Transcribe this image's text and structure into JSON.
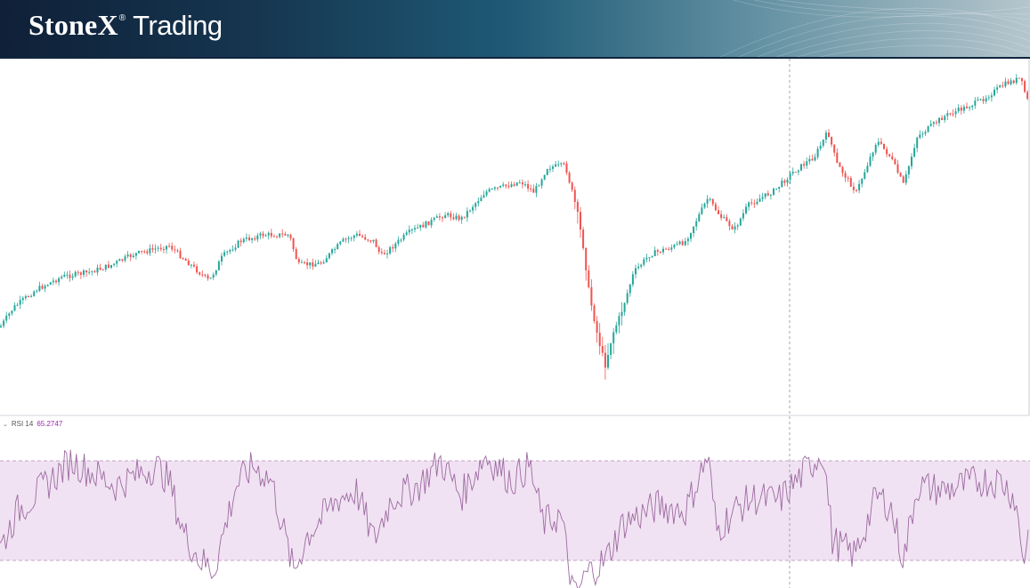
{
  "header": {
    "brand": "StoneX",
    "registered": "®",
    "product": "Trading"
  },
  "rsi": {
    "label": "RSI 14",
    "value": "65.2747",
    "upper_band": 70,
    "lower_band": 30,
    "line_color": "#9c6aa0",
    "band_fill": "#f1e2f3"
  },
  "colors": {
    "up": "#26a69a",
    "down": "#ef5350",
    "crosshair": "#8a8f98"
  },
  "icons": {
    "collapse": "chevron-down-icon"
  }
}
